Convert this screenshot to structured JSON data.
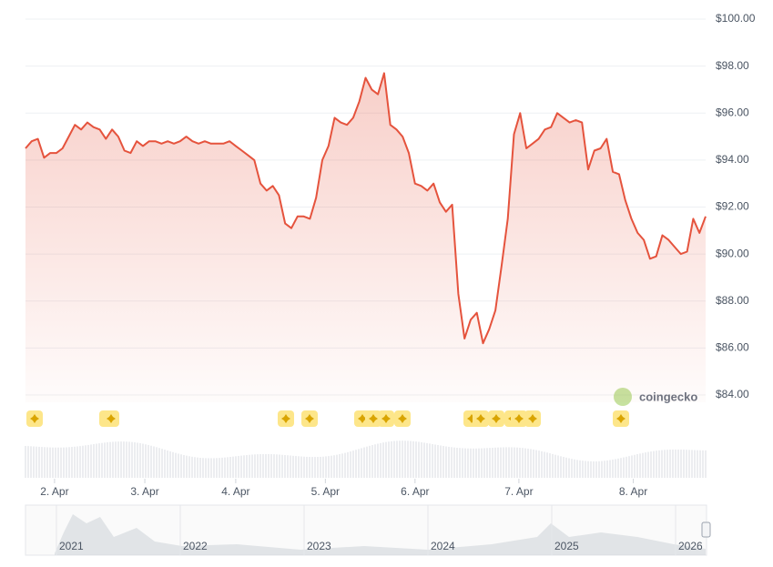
{
  "chart_data": {
    "type": "line",
    "color": "#e5533d",
    "area": true,
    "grid": true,
    "values": [
      94.5,
      94.8,
      94.9,
      94.1,
      94.3,
      94.3,
      94.5,
      95.0,
      95.5,
      95.3,
      95.6,
      95.4,
      95.3,
      94.9,
      95.3,
      95.0,
      94.4,
      94.3,
      94.8,
      94.6,
      94.8,
      94.8,
      94.7,
      94.8,
      94.7,
      94.8,
      95.0,
      94.8,
      94.7,
      94.8,
      94.7,
      94.7,
      94.7,
      94.8,
      94.6,
      94.4,
      94.2,
      94.0,
      93.0,
      92.7,
      92.9,
      92.5,
      91.3,
      91.1,
      91.6,
      91.6,
      91.5,
      92.4,
      94.0,
      94.6,
      95.8,
      95.6,
      95.5,
      95.8,
      96.5,
      97.5,
      97.0,
      96.8,
      97.7,
      95.5,
      95.3,
      95.0,
      94.3,
      93.0,
      92.9,
      92.7,
      93.0,
      92.2,
      91.8,
      92.1,
      88.3,
      86.4,
      87.2,
      87.5,
      86.2,
      86.8,
      87.6,
      89.5,
      91.5,
      95.1,
      96.0,
      94.5,
      94.7,
      94.9,
      95.3,
      95.4,
      96.0,
      95.8,
      95.6,
      95.7,
      95.6,
      93.6,
      94.4,
      94.5,
      94.9,
      93.5,
      93.4,
      92.3,
      91.5,
      90.9,
      90.6,
      89.8,
      89.9,
      90.8,
      90.6,
      90.3,
      90.0,
      90.1,
      91.5,
      90.9,
      91.6
    ],
    "xlim": [
      0,
      110
    ],
    "xticks": [
      {
        "value": 4.7,
        "label": "2. Apr"
      },
      {
        "value": 19.3,
        "label": "3. Apr"
      },
      {
        "value": 34,
        "label": "4. Apr"
      },
      {
        "value": 48.5,
        "label": "5. Apr"
      },
      {
        "value": 63,
        "label": "6. Apr"
      },
      {
        "value": 79.8,
        "label": "7. Apr"
      },
      {
        "value": 98.3,
        "label": "8. Apr"
      }
    ],
    "ylim": [
      84,
      100
    ],
    "yticks": [
      {
        "value": 84,
        "label": "$84.00"
      },
      {
        "value": 86,
        "label": "$86.00"
      },
      {
        "value": 88,
        "label": "$88.00"
      },
      {
        "value": 90,
        "label": "$90.00"
      },
      {
        "value": 92,
        "label": "$92.00"
      },
      {
        "value": 94,
        "label": "$94.00"
      },
      {
        "value": 96,
        "label": "$96.00"
      },
      {
        "value": 98,
        "label": "$98.00"
      },
      {
        "value": 100,
        "label": "$100.00"
      }
    ],
    "watermark": "coingecko",
    "navigator_labels": [
      "2021",
      "2022",
      "2023",
      "2024",
      "2025",
      "2026"
    ]
  }
}
